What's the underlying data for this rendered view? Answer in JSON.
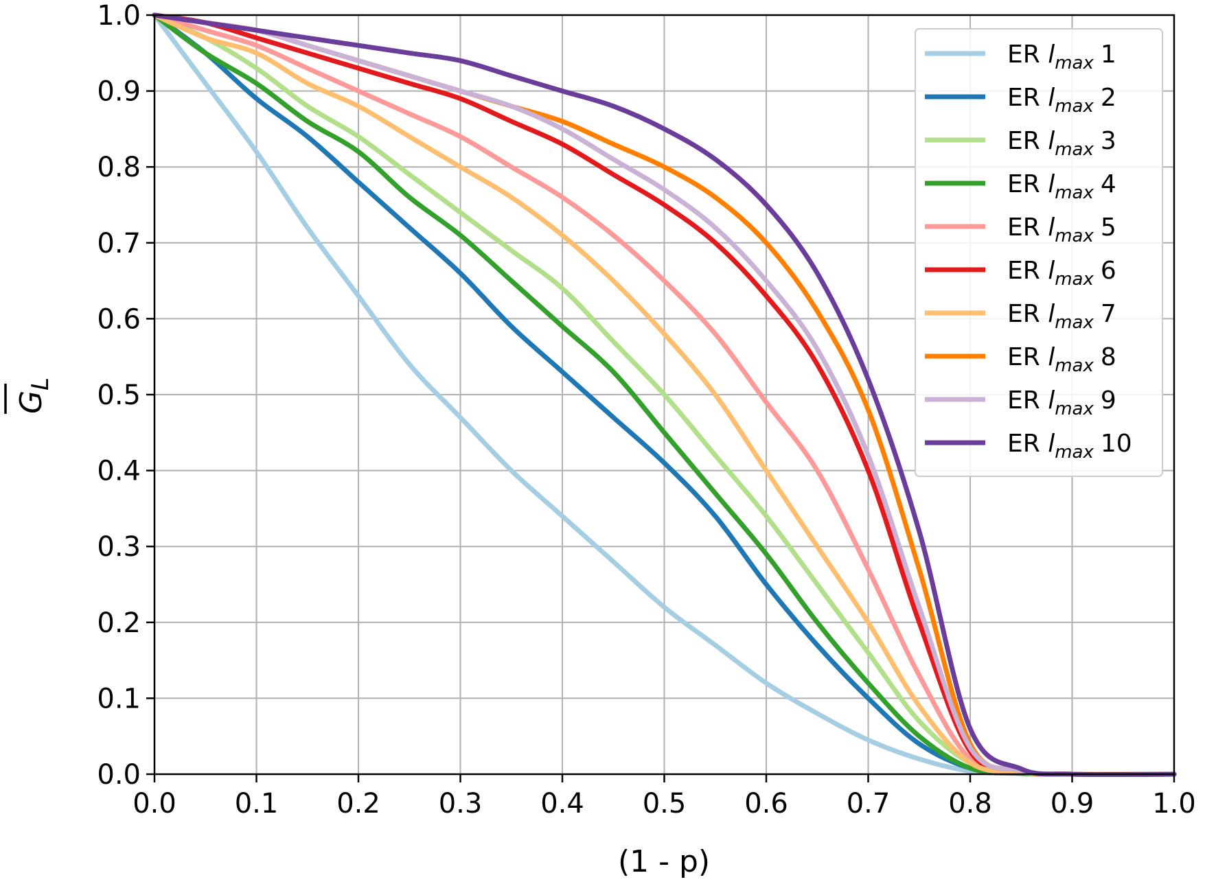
{
  "chart_data": {
    "type": "line",
    "xlabel": "(1 - p)",
    "ylabel": "G",
    "ylabel_sub": "L",
    "xlim": [
      0.0,
      1.0
    ],
    "ylim": [
      0.0,
      1.0
    ],
    "xticks": [
      "0.0",
      "0.1",
      "0.2",
      "0.3",
      "0.4",
      "0.5",
      "0.6",
      "0.7",
      "0.8",
      "0.9",
      "1.0"
    ],
    "yticks": [
      "0.0",
      "0.1",
      "0.2",
      "0.3",
      "0.4",
      "0.5",
      "0.6",
      "0.7",
      "0.8",
      "0.9",
      "1.0"
    ],
    "grid": true,
    "legend_position": "top-right",
    "x": [
      0.0,
      0.05,
      0.1,
      0.15,
      0.2,
      0.25,
      0.3,
      0.35,
      0.4,
      0.45,
      0.5,
      0.55,
      0.6,
      0.65,
      0.7,
      0.75,
      0.8,
      0.85,
      0.9,
      1.0
    ],
    "series": [
      {
        "legend_prefix": "ER ",
        "legend_var": "l",
        "legend_sub": "max",
        "legend_num": "1",
        "color": "#a6cee3",
        "values": [
          1.0,
          0.91,
          0.82,
          0.72,
          0.63,
          0.54,
          0.47,
          0.4,
          0.34,
          0.28,
          0.22,
          0.17,
          0.12,
          0.08,
          0.045,
          0.02,
          0.004,
          0.001,
          0.0,
          0.0
        ]
      },
      {
        "legend_prefix": "ER ",
        "legend_var": "l",
        "legend_sub": "max",
        "legend_num": "2",
        "color": "#1f78b4",
        "values": [
          1.0,
          0.95,
          0.89,
          0.84,
          0.78,
          0.72,
          0.66,
          0.59,
          0.53,
          0.47,
          0.41,
          0.34,
          0.25,
          0.17,
          0.1,
          0.04,
          0.008,
          0.001,
          0.0,
          0.0
        ]
      },
      {
        "legend_prefix": "ER ",
        "legend_var": "l",
        "legend_sub": "max",
        "legend_num": "3",
        "color": "#b2df8a",
        "values": [
          1.0,
          0.97,
          0.93,
          0.88,
          0.84,
          0.79,
          0.74,
          0.69,
          0.64,
          0.57,
          0.5,
          0.42,
          0.34,
          0.25,
          0.16,
          0.07,
          0.015,
          0.002,
          0.0,
          0.0
        ]
      },
      {
        "legend_prefix": "ER ",
        "legend_var": "l",
        "legend_sub": "max",
        "legend_num": "4",
        "color": "#33a02c",
        "values": [
          1.0,
          0.95,
          0.91,
          0.86,
          0.82,
          0.76,
          0.71,
          0.65,
          0.59,
          0.53,
          0.45,
          0.37,
          0.29,
          0.2,
          0.12,
          0.05,
          0.008,
          0.001,
          0.0,
          0.0
        ]
      },
      {
        "legend_prefix": "ER ",
        "legend_var": "l",
        "legend_sub": "max",
        "legend_num": "5",
        "color": "#fb9a99",
        "values": [
          1.0,
          0.98,
          0.96,
          0.93,
          0.9,
          0.87,
          0.84,
          0.8,
          0.76,
          0.71,
          0.65,
          0.58,
          0.49,
          0.4,
          0.27,
          0.13,
          0.02,
          0.003,
          0.0,
          0.0
        ]
      },
      {
        "legend_prefix": "ER ",
        "legend_var": "l",
        "legend_sub": "max",
        "legend_num": "6",
        "color": "#e31a1c",
        "values": [
          1.0,
          0.99,
          0.97,
          0.95,
          0.93,
          0.91,
          0.89,
          0.86,
          0.83,
          0.79,
          0.75,
          0.7,
          0.63,
          0.54,
          0.4,
          0.2,
          0.03,
          0.004,
          0.0,
          0.0
        ]
      },
      {
        "legend_prefix": "ER ",
        "legend_var": "l",
        "legend_sub": "max",
        "legend_num": "7",
        "color": "#fdbf6f",
        "values": [
          1.0,
          0.97,
          0.95,
          0.91,
          0.88,
          0.84,
          0.8,
          0.76,
          0.71,
          0.65,
          0.58,
          0.5,
          0.4,
          0.3,
          0.2,
          0.09,
          0.015,
          0.002,
          0.0,
          0.0
        ]
      },
      {
        "legend_prefix": "ER ",
        "legend_var": "l",
        "legend_sub": "max",
        "legend_num": "8",
        "color": "#ff7f00",
        "values": [
          1.0,
          0.99,
          0.98,
          0.96,
          0.94,
          0.92,
          0.9,
          0.88,
          0.86,
          0.83,
          0.8,
          0.76,
          0.7,
          0.61,
          0.48,
          0.27,
          0.04,
          0.005,
          0.0,
          0.0
        ]
      },
      {
        "legend_prefix": "ER ",
        "legend_var": "l",
        "legend_sub": "max",
        "legend_num": "9",
        "color": "#cab2d6",
        "values": [
          1.0,
          0.99,
          0.98,
          0.96,
          0.94,
          0.92,
          0.9,
          0.88,
          0.85,
          0.81,
          0.77,
          0.72,
          0.65,
          0.56,
          0.42,
          0.22,
          0.035,
          0.005,
          0.0,
          0.0
        ]
      },
      {
        "legend_prefix": "ER ",
        "legend_var": "l",
        "legend_sub": "max",
        "legend_num": "10",
        "color": "#6a3d9a",
        "values": [
          1.0,
          0.99,
          0.98,
          0.97,
          0.96,
          0.95,
          0.94,
          0.92,
          0.9,
          0.88,
          0.85,
          0.81,
          0.75,
          0.66,
          0.52,
          0.32,
          0.06,
          0.007,
          0.0,
          0.0
        ]
      }
    ]
  }
}
